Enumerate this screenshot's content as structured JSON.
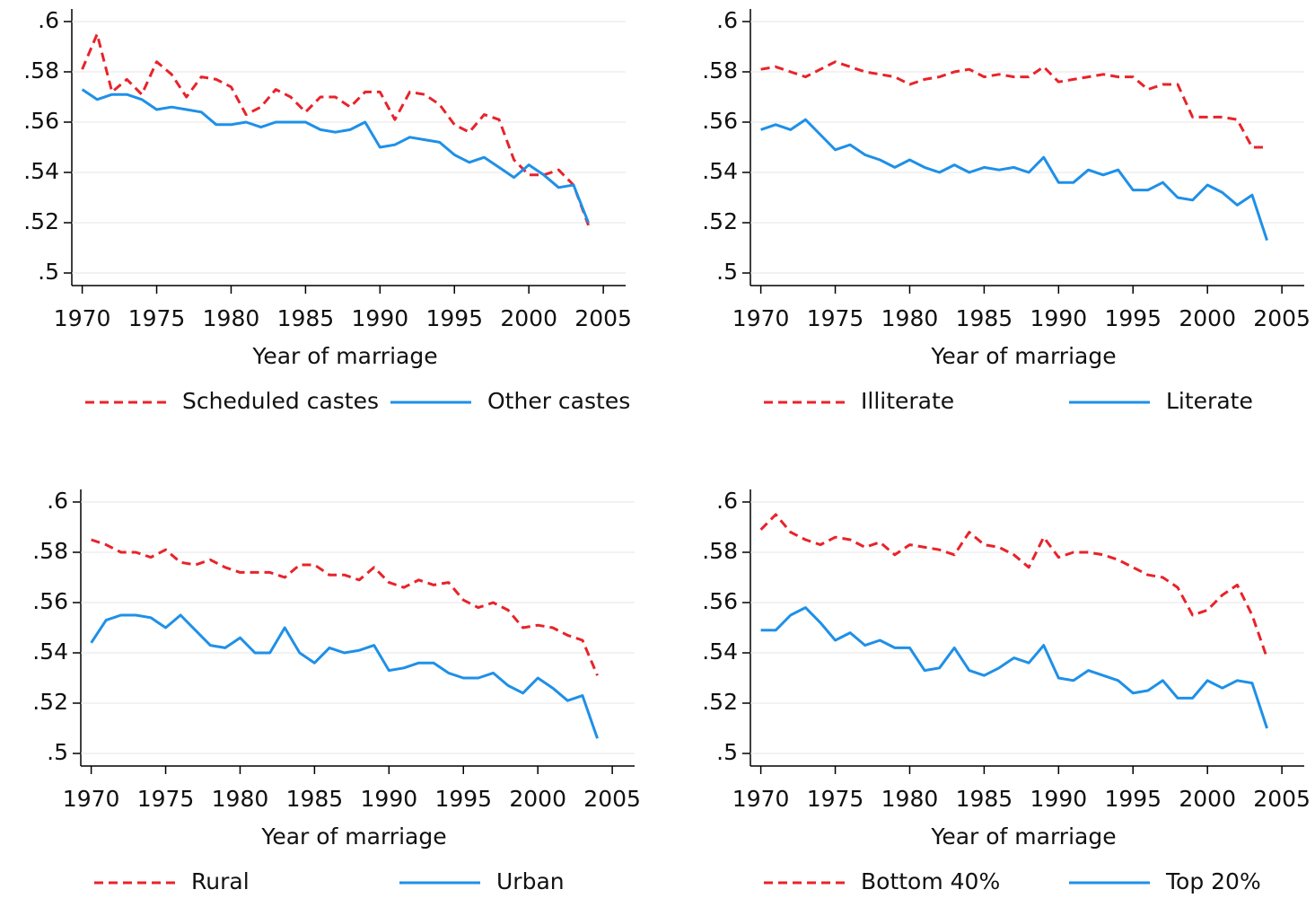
{
  "chart_data": [
    {
      "type": "line",
      "xlabel": "Year of marriage",
      "x": [
        1970,
        1971,
        1972,
        1973,
        1974,
        1975,
        1976,
        1977,
        1978,
        1979,
        1980,
        1981,
        1982,
        1983,
        1984,
        1985,
        1986,
        1987,
        1988,
        1989,
        1990,
        1991,
        1992,
        1993,
        1994,
        1995,
        1996,
        1997,
        1998,
        1999,
        2000,
        2001,
        2002,
        2003,
        2004
      ],
      "xlim": [
        1969.3,
        2006.5
      ],
      "xticks": [
        1970,
        1975,
        1980,
        1985,
        1990,
        1995,
        2000,
        2005
      ],
      "ylim": [
        0.495,
        0.605
      ],
      "yticks": [
        {
          "value": 0.5,
          "label": ".5"
        },
        {
          "value": 0.52,
          "label": ".52"
        },
        {
          "value": 0.54,
          "label": ".54"
        },
        {
          "value": 0.56,
          "label": ".56"
        },
        {
          "value": 0.58,
          "label": ".58"
        },
        {
          "value": 0.6,
          "label": ".6"
        }
      ],
      "grid": true,
      "series": [
        {
          "name": "Scheduled castes",
          "color": "#e8232a",
          "style": "dashed",
          "values": [
            0.581,
            0.595,
            0.572,
            0.577,
            0.571,
            0.584,
            0.579,
            0.57,
            0.578,
            0.577,
            0.574,
            0.563,
            0.566,
            0.573,
            0.57,
            0.564,
            0.57,
            0.57,
            0.566,
            0.572,
            0.572,
            0.561,
            0.572,
            0.571,
            0.567,
            0.559,
            0.556,
            0.563,
            0.561,
            0.545,
            0.539,
            0.539,
            0.541,
            0.535,
            0.519
          ]
        },
        {
          "name": "Other castes",
          "color": "#1e90e8",
          "style": "solid",
          "values": [
            0.573,
            0.569,
            0.571,
            0.571,
            0.569,
            0.565,
            0.566,
            0.565,
            0.564,
            0.559,
            0.559,
            0.56,
            0.558,
            0.56,
            0.56,
            0.56,
            0.557,
            0.556,
            0.557,
            0.56,
            0.55,
            0.551,
            0.554,
            0.553,
            0.552,
            0.547,
            0.544,
            0.546,
            0.542,
            0.538,
            0.543,
            0.539,
            0.534,
            0.535,
            0.52
          ]
        }
      ]
    },
    {
      "type": "line",
      "xlabel": "Year of marriage",
      "x": [
        1970,
        1971,
        1972,
        1973,
        1974,
        1975,
        1976,
        1977,
        1978,
        1979,
        1980,
        1981,
        1982,
        1983,
        1984,
        1985,
        1986,
        1987,
        1988,
        1989,
        1990,
        1991,
        1992,
        1993,
        1994,
        1995,
        1996,
        1997,
        1998,
        1999,
        2000,
        2001,
        2002,
        2003,
        2004
      ],
      "xlim": [
        1969.3,
        2006.5
      ],
      "xticks": [
        1970,
        1975,
        1980,
        1985,
        1990,
        1995,
        2000,
        2005
      ],
      "ylim": [
        0.495,
        0.605
      ],
      "yticks": [
        {
          "value": 0.5,
          "label": ".5"
        },
        {
          "value": 0.52,
          "label": ".52"
        },
        {
          "value": 0.54,
          "label": ".54"
        },
        {
          "value": 0.56,
          "label": ".56"
        },
        {
          "value": 0.58,
          "label": ".58"
        },
        {
          "value": 0.6,
          "label": ".6"
        }
      ],
      "grid": true,
      "series": [
        {
          "name": "Illiterate",
          "color": "#e8232a",
          "style": "dashed",
          "values": [
            0.581,
            0.582,
            0.58,
            0.578,
            0.581,
            0.584,
            0.582,
            0.58,
            0.579,
            0.578,
            0.575,
            0.577,
            0.578,
            0.58,
            0.581,
            0.578,
            0.579,
            0.578,
            0.578,
            0.582,
            0.576,
            0.577,
            0.578,
            0.579,
            0.578,
            0.578,
            0.573,
            0.575,
            0.575,
            0.562,
            0.562,
            0.562,
            0.561,
            0.55,
            0.55
          ]
        },
        {
          "name": "Literate",
          "color": "#1e90e8",
          "style": "solid",
          "values": [
            0.557,
            0.559,
            0.557,
            0.561,
            0.555,
            0.549,
            0.551,
            0.547,
            0.545,
            0.542,
            0.545,
            0.542,
            0.54,
            0.543,
            0.54,
            0.542,
            0.541,
            0.542,
            0.54,
            0.546,
            0.536,
            0.536,
            0.541,
            0.539,
            0.541,
            0.533,
            0.533,
            0.536,
            0.53,
            0.529,
            0.535,
            0.532,
            0.527,
            0.531,
            0.513
          ]
        }
      ]
    },
    {
      "type": "line",
      "xlabel": "Year of marriage",
      "x": [
        1970,
        1971,
        1972,
        1973,
        1974,
        1975,
        1976,
        1977,
        1978,
        1979,
        1980,
        1981,
        1982,
        1983,
        1984,
        1985,
        1986,
        1987,
        1988,
        1989,
        1990,
        1991,
        1992,
        1993,
        1994,
        1995,
        1996,
        1997,
        1998,
        1999,
        2000,
        2001,
        2002,
        2003,
        2004
      ],
      "xlim": [
        1969.3,
        2006.5
      ],
      "xticks": [
        1970,
        1975,
        1980,
        1985,
        1990,
        1995,
        2000,
        2005
      ],
      "ylim": [
        0.495,
        0.605
      ],
      "yticks": [
        {
          "value": 0.5,
          "label": ".5"
        },
        {
          "value": 0.52,
          "label": ".52"
        },
        {
          "value": 0.54,
          "label": ".54"
        },
        {
          "value": 0.56,
          "label": ".56"
        },
        {
          "value": 0.58,
          "label": ".58"
        },
        {
          "value": 0.6,
          "label": ".6"
        }
      ],
      "grid": true,
      "series": [
        {
          "name": "Rural",
          "color": "#e8232a",
          "style": "dashed",
          "values": [
            0.585,
            0.583,
            0.58,
            0.58,
            0.578,
            0.581,
            0.576,
            0.575,
            0.577,
            0.574,
            0.572,
            0.572,
            0.572,
            0.57,
            0.575,
            0.575,
            0.571,
            0.571,
            0.569,
            0.574,
            0.568,
            0.566,
            0.569,
            0.567,
            0.568,
            0.561,
            0.558,
            0.56,
            0.557,
            0.55,
            0.551,
            0.55,
            0.547,
            0.545,
            0.531
          ]
        },
        {
          "name": "Urban",
          "color": "#1e90e8",
          "style": "solid",
          "values": [
            0.544,
            0.553,
            0.555,
            0.555,
            0.554,
            0.55,
            0.555,
            0.549,
            0.543,
            0.542,
            0.546,
            0.54,
            0.54,
            0.55,
            0.54,
            0.536,
            0.542,
            0.54,
            0.541,
            0.543,
            0.533,
            0.534,
            0.536,
            0.536,
            0.532,
            0.53,
            0.53,
            0.532,
            0.527,
            0.524,
            0.53,
            0.526,
            0.521,
            0.523,
            0.506
          ]
        }
      ]
    },
    {
      "type": "line",
      "xlabel": "Year of marriage",
      "x": [
        1970,
        1971,
        1972,
        1973,
        1974,
        1975,
        1976,
        1977,
        1978,
        1979,
        1980,
        1981,
        1982,
        1983,
        1984,
        1985,
        1986,
        1987,
        1988,
        1989,
        1990,
        1991,
        1992,
        1993,
        1994,
        1995,
        1996,
        1997,
        1998,
        1999,
        2000,
        2001,
        2002,
        2003,
        2004
      ],
      "xlim": [
        1969.3,
        2006.5
      ],
      "xticks": [
        1970,
        1975,
        1980,
        1985,
        1990,
        1995,
        2000,
        2005
      ],
      "ylim": [
        0.495,
        0.605
      ],
      "yticks": [
        {
          "value": 0.5,
          "label": ".5"
        },
        {
          "value": 0.52,
          "label": ".52"
        },
        {
          "value": 0.54,
          "label": ".54"
        },
        {
          "value": 0.56,
          "label": ".56"
        },
        {
          "value": 0.58,
          "label": ".58"
        },
        {
          "value": 0.6,
          "label": ".6"
        }
      ],
      "grid": true,
      "series": [
        {
          "name": "Bottom 40%",
          "color": "#e8232a",
          "style": "dashed",
          "values": [
            0.589,
            0.595,
            0.588,
            0.585,
            0.583,
            0.586,
            0.585,
            0.582,
            0.584,
            0.579,
            0.583,
            0.582,
            0.581,
            0.579,
            0.588,
            0.583,
            0.582,
            0.579,
            0.574,
            0.586,
            0.578,
            0.58,
            0.58,
            0.579,
            0.577,
            0.574,
            0.571,
            0.57,
            0.566,
            0.555,
            0.557,
            0.563,
            0.567,
            0.555,
            0.538
          ]
        },
        {
          "name": "Top 20%",
          "color": "#1e90e8",
          "style": "solid",
          "values": [
            0.549,
            0.549,
            0.555,
            0.558,
            0.552,
            0.545,
            0.548,
            0.543,
            0.545,
            0.542,
            0.542,
            0.533,
            0.534,
            0.542,
            0.533,
            0.531,
            0.534,
            0.538,
            0.536,
            0.543,
            0.53,
            0.529,
            0.533,
            0.531,
            0.529,
            0.524,
            0.525,
            0.529,
            0.522,
            0.522,
            0.529,
            0.526,
            0.529,
            0.528,
            0.51
          ]
        }
      ]
    }
  ]
}
